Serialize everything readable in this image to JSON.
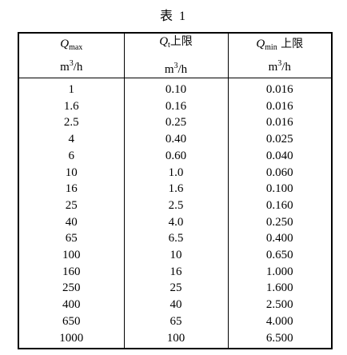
{
  "caption": "表 1",
  "headers": [
    {
      "symbol": "Q",
      "subscript": "max",
      "suffix": "",
      "unit_base": "m",
      "unit_exp": "3",
      "unit_tail": "/h"
    },
    {
      "symbol": "Q",
      "subscript": "t",
      "suffix": "上限",
      "unit_base": "m",
      "unit_exp": "3",
      "unit_tail": "/h"
    },
    {
      "symbol": "Q",
      "subscript": "min",
      "suffix": " 上限",
      "unit_base": "m",
      "unit_exp": "3",
      "unit_tail": "/h"
    }
  ],
  "rows": [
    [
      "1",
      "0.10",
      "0.016"
    ],
    [
      "1.6",
      "0.16",
      "0.016"
    ],
    [
      "2.5",
      "0.25",
      "0.016"
    ],
    [
      "4",
      "0.40",
      "0.025"
    ],
    [
      "6",
      "0.60",
      "0.040"
    ],
    [
      "10",
      "1.0",
      "0.060"
    ],
    [
      "16",
      "1.6",
      "0.100"
    ],
    [
      "25",
      "2.5",
      "0.160"
    ],
    [
      "40",
      "4.0",
      "0.250"
    ],
    [
      "65",
      "6.5",
      "0.400"
    ],
    [
      "100",
      "10",
      "0.650"
    ],
    [
      "160",
      "16",
      "1.000"
    ],
    [
      "250",
      "25",
      "1.600"
    ],
    [
      "400",
      "40",
      "2.500"
    ],
    [
      "650",
      "65",
      "4.000"
    ],
    [
      "1000",
      "100",
      "6.500"
    ]
  ]
}
